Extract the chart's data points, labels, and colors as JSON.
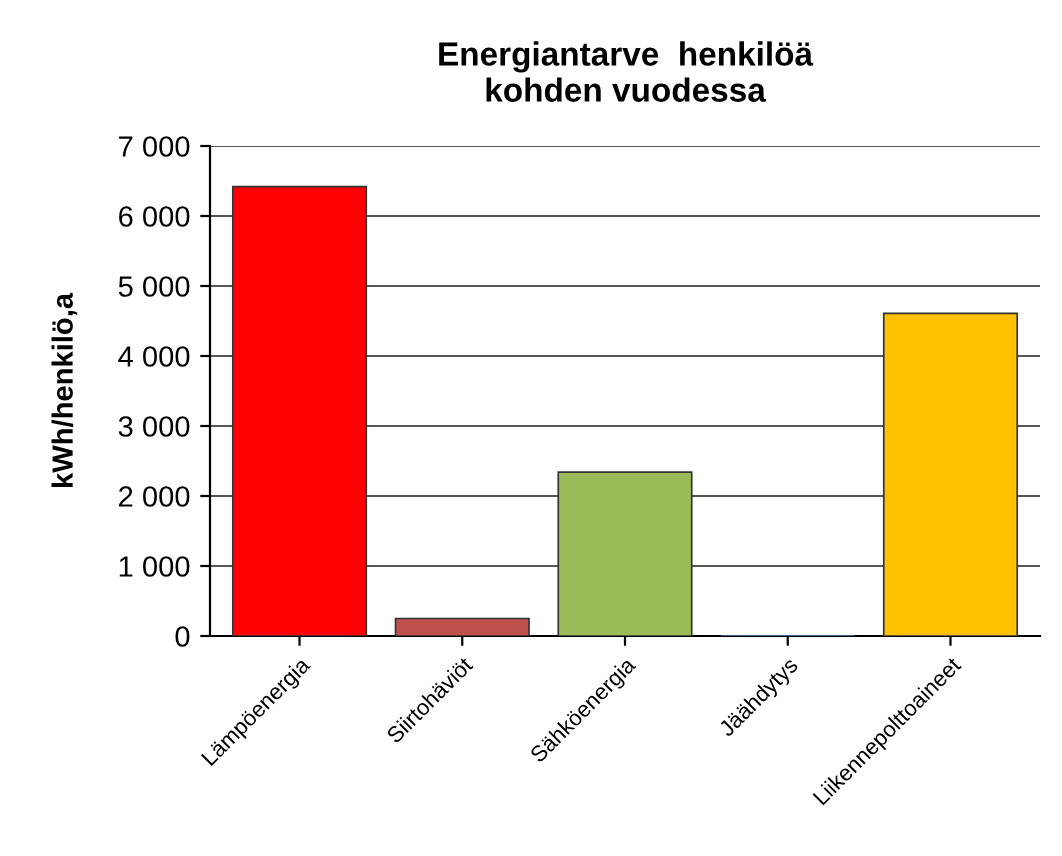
{
  "chart_data": {
    "type": "bar",
    "title": "Energiantarve  henkilöä\nkohden vuodessa",
    "ylabel": "kWh/henkilö,a",
    "categories": [
      "Lämpöenergia",
      "Siirtohäviöt",
      "Sähköenergia",
      "Jäähdytys",
      "Liikennepolttoaineet"
    ],
    "values": [
      6420,
      250,
      2340,
      0,
      4610
    ],
    "colors": [
      "#ff0000",
      "#c0504d",
      "#9bbb59",
      "#4f81bd",
      "#ffc000"
    ],
    "ylim": [
      0,
      7000
    ],
    "yticks": [
      {
        "value": 0,
        "label": "0"
      },
      {
        "value": 1000,
        "label": "1 000"
      },
      {
        "value": 2000,
        "label": "2 000"
      },
      {
        "value": 3000,
        "label": "3 000"
      },
      {
        "value": 4000,
        "label": "4 000"
      },
      {
        "value": 5000,
        "label": "5 000"
      },
      {
        "value": 6000,
        "label": "6 000"
      },
      {
        "value": 7000,
        "label": "7 000"
      }
    ],
    "grid": "y",
    "legend": false
  }
}
